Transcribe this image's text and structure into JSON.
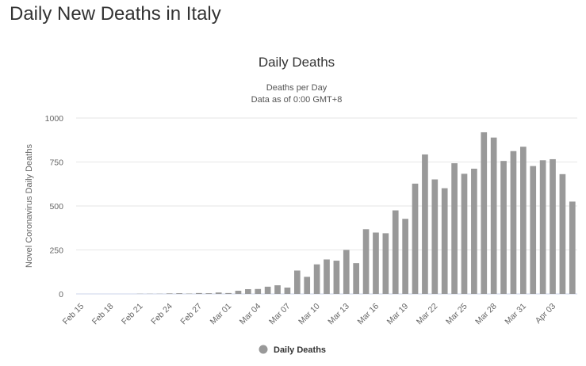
{
  "page": {
    "title": "Daily New Deaths in Italy"
  },
  "chart_data": {
    "type": "bar",
    "title": "Daily Deaths",
    "subtitle": [
      "Deaths per Day",
      "Data as of 0:00 GMT+8"
    ],
    "xlabel": "",
    "ylabel": "Novel Coronavirus Daily Deaths",
    "ylim": [
      0,
      1000
    ],
    "yticks": [
      0,
      250,
      500,
      750,
      1000
    ],
    "xtick_labels": [
      "Feb 15",
      "Feb 18",
      "Feb 21",
      "Feb 24",
      "Feb 27",
      "Mar 01",
      "Mar 04",
      "Mar 07",
      "Mar 10",
      "Mar 13",
      "Mar 16",
      "Mar 19",
      "Mar 22",
      "Mar 25",
      "Mar 28",
      "Mar 31",
      "Apr 03"
    ],
    "grid": true,
    "legend_position": "bottom",
    "series": [
      {
        "name": "Daily Deaths",
        "color": "#999999",
        "categories": [
          "Feb 15",
          "Feb 16",
          "Feb 17",
          "Feb 18",
          "Feb 19",
          "Feb 20",
          "Feb 21",
          "Feb 22",
          "Feb 23",
          "Feb 24",
          "Feb 25",
          "Feb 26",
          "Feb 27",
          "Feb 28",
          "Feb 29",
          "Mar 01",
          "Mar 02",
          "Mar 03",
          "Mar 04",
          "Mar 05",
          "Mar 06",
          "Mar 07",
          "Mar 08",
          "Mar 09",
          "Mar 10",
          "Mar 11",
          "Mar 12",
          "Mar 13",
          "Mar 14",
          "Mar 15",
          "Mar 16",
          "Mar 17",
          "Mar 18",
          "Mar 19",
          "Mar 20",
          "Mar 21",
          "Mar 22",
          "Mar 23",
          "Mar 24",
          "Mar 25",
          "Mar 26",
          "Mar 27",
          "Mar 28",
          "Mar 29",
          "Mar 30",
          "Mar 31",
          "Apr 01",
          "Apr 02",
          "Apr 03",
          "Apr 04",
          "Apr 05"
        ],
        "values": [
          0,
          0,
          0,
          0,
          0,
          0,
          1,
          1,
          1,
          3,
          4,
          2,
          5,
          4,
          8,
          5,
          18,
          27,
          28,
          41,
          49,
          36,
          133,
          97,
          168,
          196,
          189,
          250,
          175,
          368,
          349,
          345,
          475,
          427,
          627,
          793,
          651,
          601,
          743,
          683,
          712,
          919,
          889,
          756,
          812,
          837,
          727,
          760,
          766,
          681,
          525
        ]
      }
    ]
  }
}
